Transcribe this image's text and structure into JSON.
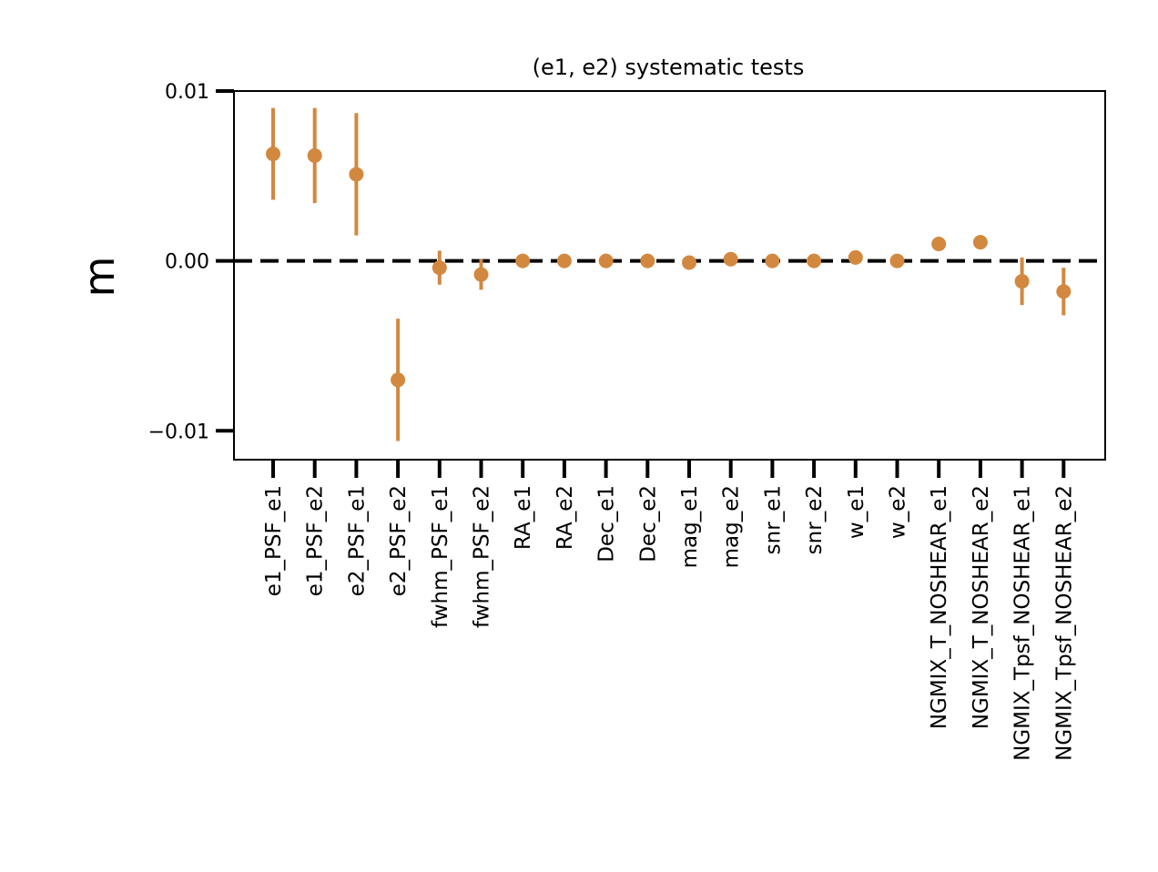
{
  "chart_data": {
    "type": "scatter",
    "title": "(e1, e2) systematic tests",
    "xlabel": "",
    "ylabel": "m",
    "ylim": [
      -0.0117,
      0.01
    ],
    "yticks": [
      0.01,
      0.0,
      -0.01
    ],
    "ytick_labels": [
      "0.01",
      "0.00",
      "−0.01"
    ],
    "reference_line": {
      "y": 0.0,
      "style": "dashed",
      "color": "#000000"
    },
    "grid": false,
    "legend": "none",
    "marker_color": "#D2883F",
    "categories": [
      "e1_PSF_e1",
      "e1_PSF_e2",
      "e2_PSF_e1",
      "e2_PSF_e2",
      "fwhm_PSF_e1",
      "fwhm_PSF_e2",
      "RA_e1",
      "RA_e2",
      "Dec_e1",
      "Dec_e2",
      "mag_e1",
      "mag_e2",
      "snr_e1",
      "snr_e2",
      "w_e1",
      "w_e2",
      "NGMIX_T_NOSHEAR_e1",
      "NGMIX_T_NOSHEAR_e2",
      "NGMIX_Tpsf_NOSHEAR_e1",
      "NGMIX_Tpsf_NOSHEAR_e2"
    ],
    "values": [
      0.0063,
      0.0062,
      0.0051,
      -0.007,
      -0.0004,
      -0.0008,
      0.0,
      0.0,
      0.0,
      0.0,
      -0.0001,
      0.0001,
      0.0,
      0.0,
      0.0002,
      0.0,
      0.001,
      0.0011,
      -0.0012,
      -0.0018
    ],
    "errors": [
      0.0027,
      0.0028,
      0.0036,
      0.0036,
      0.001,
      0.0009,
      0.0001,
      0.0001,
      0.0001,
      0.0001,
      0.0001,
      0.0001,
      0.0001,
      0.0001,
      0.0001,
      0.0001,
      0.0001,
      0.0001,
      0.0014,
      0.0014
    ]
  }
}
